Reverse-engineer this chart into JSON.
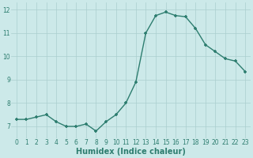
{
  "x": [
    0,
    1,
    2,
    3,
    4,
    5,
    6,
    7,
    8,
    9,
    10,
    11,
    12,
    13,
    14,
    15,
    16,
    17,
    18,
    19,
    20,
    21,
    22,
    23
  ],
  "y": [
    7.3,
    7.3,
    7.4,
    7.5,
    7.2,
    7.0,
    7.0,
    7.1,
    6.8,
    7.2,
    7.5,
    8.0,
    8.9,
    11.0,
    11.75,
    11.9,
    11.75,
    11.7,
    11.2,
    10.5,
    10.2,
    9.9,
    9.8,
    9.35
  ],
  "line_color": "#2d7d6f",
  "marker": "+",
  "marker_size": 3.5,
  "bg_color": "#cce9e9",
  "grid_color": "#aacece",
  "xlabel": "Humidex (Indice chaleur)",
  "xlim": [
    -0.5,
    23.5
  ],
  "ylim": [
    6.5,
    12.3
  ],
  "yticks": [
    7,
    8,
    9,
    10,
    11,
    12
  ],
  "xticks": [
    0,
    1,
    2,
    3,
    4,
    5,
    6,
    7,
    8,
    9,
    10,
    11,
    12,
    13,
    14,
    15,
    16,
    17,
    18,
    19,
    20,
    21,
    22,
    23
  ],
  "tick_fontsize": 5.5,
  "xlabel_fontsize": 7.0,
  "text_color": "#2d7d6f",
  "linewidth": 1.0,
  "marker_color": "#2d7d6f"
}
